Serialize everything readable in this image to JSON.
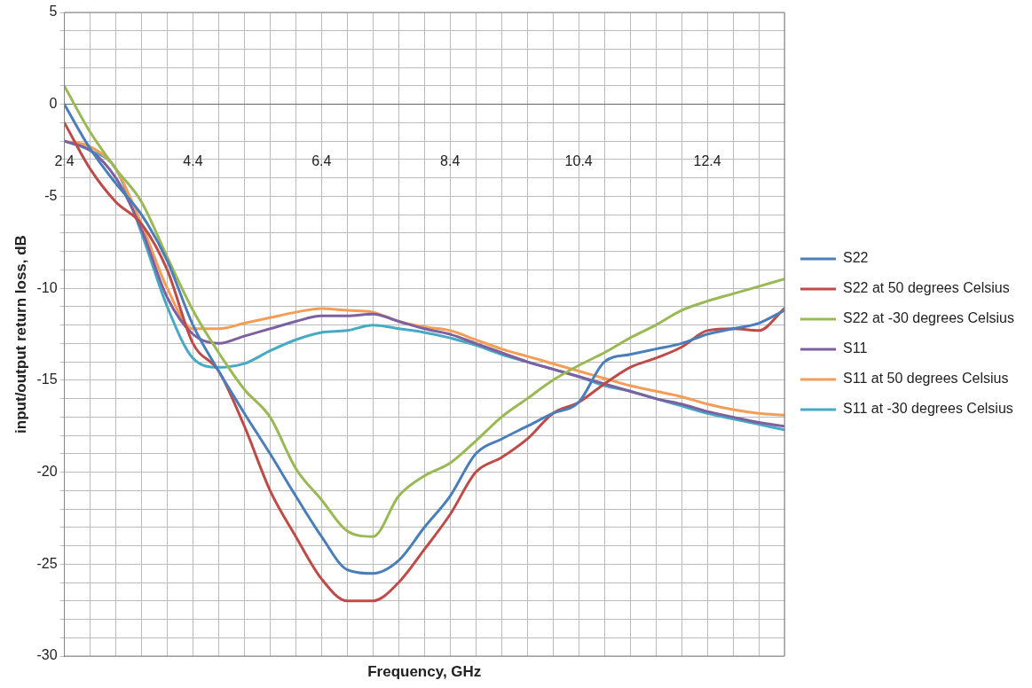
{
  "chart_data": {
    "type": "line",
    "xlabel": "Frequency, GHz",
    "ylabel": "input/output return loss, dB",
    "x": [
      2.4,
      2.8,
      3.2,
      3.6,
      4.0,
      4.4,
      4.8,
      5.2,
      5.6,
      6.0,
      6.4,
      6.8,
      7.2,
      7.6,
      8.0,
      8.4,
      8.8,
      9.2,
      9.6,
      10.0,
      10.4,
      10.8,
      11.2,
      11.6,
      12.0,
      12.4,
      12.8,
      13.2,
      13.6
    ],
    "series": [
      {
        "name": "S22",
        "color": "#4a7ebb",
        "values": [
          0,
          -2.4,
          -4.3,
          -6,
          -8.5,
          -12,
          -14.5,
          -16.8,
          -19,
          -21.3,
          -23.5,
          -25.3,
          -25.5,
          -24.8,
          -23,
          -21.3,
          -19,
          -18.2,
          -17.5,
          -16.8,
          -16.2,
          -14,
          -13.6,
          -13.3,
          -13,
          -12.5,
          -12.2,
          -11.9,
          -11.2
        ]
      },
      {
        "name": "S22 at 50 degrees Celsius",
        "color": "#be4b48",
        "values": [
          -1,
          -3.5,
          -5.3,
          -6.5,
          -9,
          -13,
          -14.5,
          -17.5,
          -21,
          -23.5,
          -25.8,
          -27,
          -27,
          -26,
          -24.2,
          -22.3,
          -20,
          -19.2,
          -18.2,
          -16.8,
          -16.2,
          -15.2,
          -14.3,
          -13.8,
          -13.2,
          -12.3,
          -12.2,
          -12.3,
          -11.1
        ]
      },
      {
        "name": "S22 at -30 degrees Celsius",
        "color": "#98b954",
        "values": [
          1,
          -1.5,
          -3.5,
          -5.3,
          -8.3,
          -11.2,
          -13.5,
          -15.5,
          -17,
          -19.8,
          -21.5,
          -23.2,
          -23.5,
          -21.3,
          -20.2,
          -19.5,
          -18.3,
          -17,
          -16,
          -15,
          -14.2,
          -13.5,
          -12.7,
          -12,
          -11.2,
          -10.7,
          -10.3,
          -9.9,
          -9.5
        ]
      },
      {
        "name": "S11",
        "color": "#7d60a0",
        "values": [
          -2,
          -2.5,
          -4,
          -6.8,
          -10.5,
          -12.5,
          -13,
          -12.6,
          -12.2,
          -11.8,
          -11.5,
          -11.5,
          -11.4,
          -11.8,
          -12.2,
          -12.5,
          -13,
          -13.5,
          -14,
          -14.4,
          -14.8,
          -15.2,
          -15.6,
          -16,
          -16.3,
          -16.7,
          -17,
          -17.3,
          -17.5
        ]
      },
      {
        "name": "S11 at 50 degrees Celsius",
        "color": "#f59d56",
        "values": [
          -2,
          -2.3,
          -3.5,
          -6.5,
          -10,
          -12.2,
          -12.2,
          -11.9,
          -11.6,
          -11.3,
          -11.1,
          -11.2,
          -11.3,
          -11.8,
          -12.1,
          -12.3,
          -12.8,
          -13.3,
          -13.7,
          -14.1,
          -14.5,
          -14.9,
          -15.3,
          -15.6,
          -15.9,
          -16.3,
          -16.6,
          -16.8,
          -16.9
        ]
      },
      {
        "name": "S11 at -30 degrees Celsius",
        "color": "#46aac5",
        "values": [
          -2,
          -2.5,
          -3.5,
          -7,
          -11,
          -13.8,
          -14.3,
          -14.1,
          -13.4,
          -12.8,
          -12.4,
          -12.3,
          -12,
          -12.2,
          -12.4,
          -12.7,
          -13.1,
          -13.6,
          -14,
          -14.4,
          -14.8,
          -15.3,
          -15.6,
          -16,
          -16.4,
          -16.8,
          -17.1,
          -17.4,
          -17.7
        ]
      }
    ],
    "xlim": [
      2.4,
      13.6
    ],
    "xticks": [
      2.4,
      {
        "value": 2.8,
        "label": null
      },
      {
        "value": 3.2,
        "label": null
      },
      {
        "value": 3.6,
        "label": null
      },
      {
        "value": 4.0,
        "label": null
      },
      4.4,
      {
        "value": 4.8,
        "label": null
      },
      {
        "value": 5.2,
        "label": null
      },
      {
        "value": 5.6,
        "label": null
      },
      {
        "value": 6.0,
        "label": null
      },
      6.4,
      {
        "value": 6.8,
        "label": null
      },
      {
        "value": 7.2,
        "label": null
      },
      {
        "value": 7.6,
        "label": null
      },
      {
        "value": 8.0,
        "label": null
      },
      8.4,
      {
        "value": 8.8,
        "label": null
      },
      {
        "value": 9.2,
        "label": null
      },
      {
        "value": 9.6,
        "label": null
      },
      {
        "value": 10.0,
        "label": null
      },
      10.4,
      {
        "value": 10.8,
        "label": null
      },
      {
        "value": 11.2,
        "label": null
      },
      {
        "value": 11.6,
        "label": null
      },
      {
        "value": 12.0,
        "label": null
      },
      12.4,
      {
        "value": 12.8,
        "label": null
      },
      {
        "value": 13.2,
        "label": null
      },
      {
        "value": 13.6,
        "label": null
      }
    ],
    "ylim": [
      -30,
      5
    ],
    "yticks": [
      -30,
      {
        "value": -29,
        "label": null
      },
      {
        "value": -28,
        "label": null
      },
      {
        "value": -27,
        "label": null
      },
      {
        "value": -26,
        "label": null
      },
      -25,
      {
        "value": -24,
        "label": null
      },
      {
        "value": -23,
        "label": null
      },
      {
        "value": -22,
        "label": null
      },
      {
        "value": -21,
        "label": null
      },
      -20,
      {
        "value": -19,
        "label": null
      },
      {
        "value": -18,
        "label": null
      },
      {
        "value": -17,
        "label": null
      },
      {
        "value": -16,
        "label": null
      },
      -15,
      {
        "value": -14,
        "label": null
      },
      {
        "value": -13,
        "label": null
      },
      {
        "value": -12,
        "label": null
      },
      {
        "value": -11,
        "label": null
      },
      -10,
      {
        "value": -9,
        "label": null
      },
      {
        "value": -8,
        "label": null
      },
      {
        "value": -7,
        "label": null
      },
      {
        "value": -6,
        "label": null
      },
      -5,
      {
        "value": -4,
        "label": null
      },
      {
        "value": -3,
        "label": null
      },
      {
        "value": -2,
        "label": null
      },
      {
        "value": -1,
        "label": null
      },
      0,
      {
        "value": 1,
        "label": null
      },
      {
        "value": 2,
        "label": null
      },
      {
        "value": 3,
        "label": null
      },
      {
        "value": 4,
        "label": null
      },
      5
    ],
    "grid": true,
    "legend": "right",
    "marker": "none",
    "line_style": "solid"
  }
}
